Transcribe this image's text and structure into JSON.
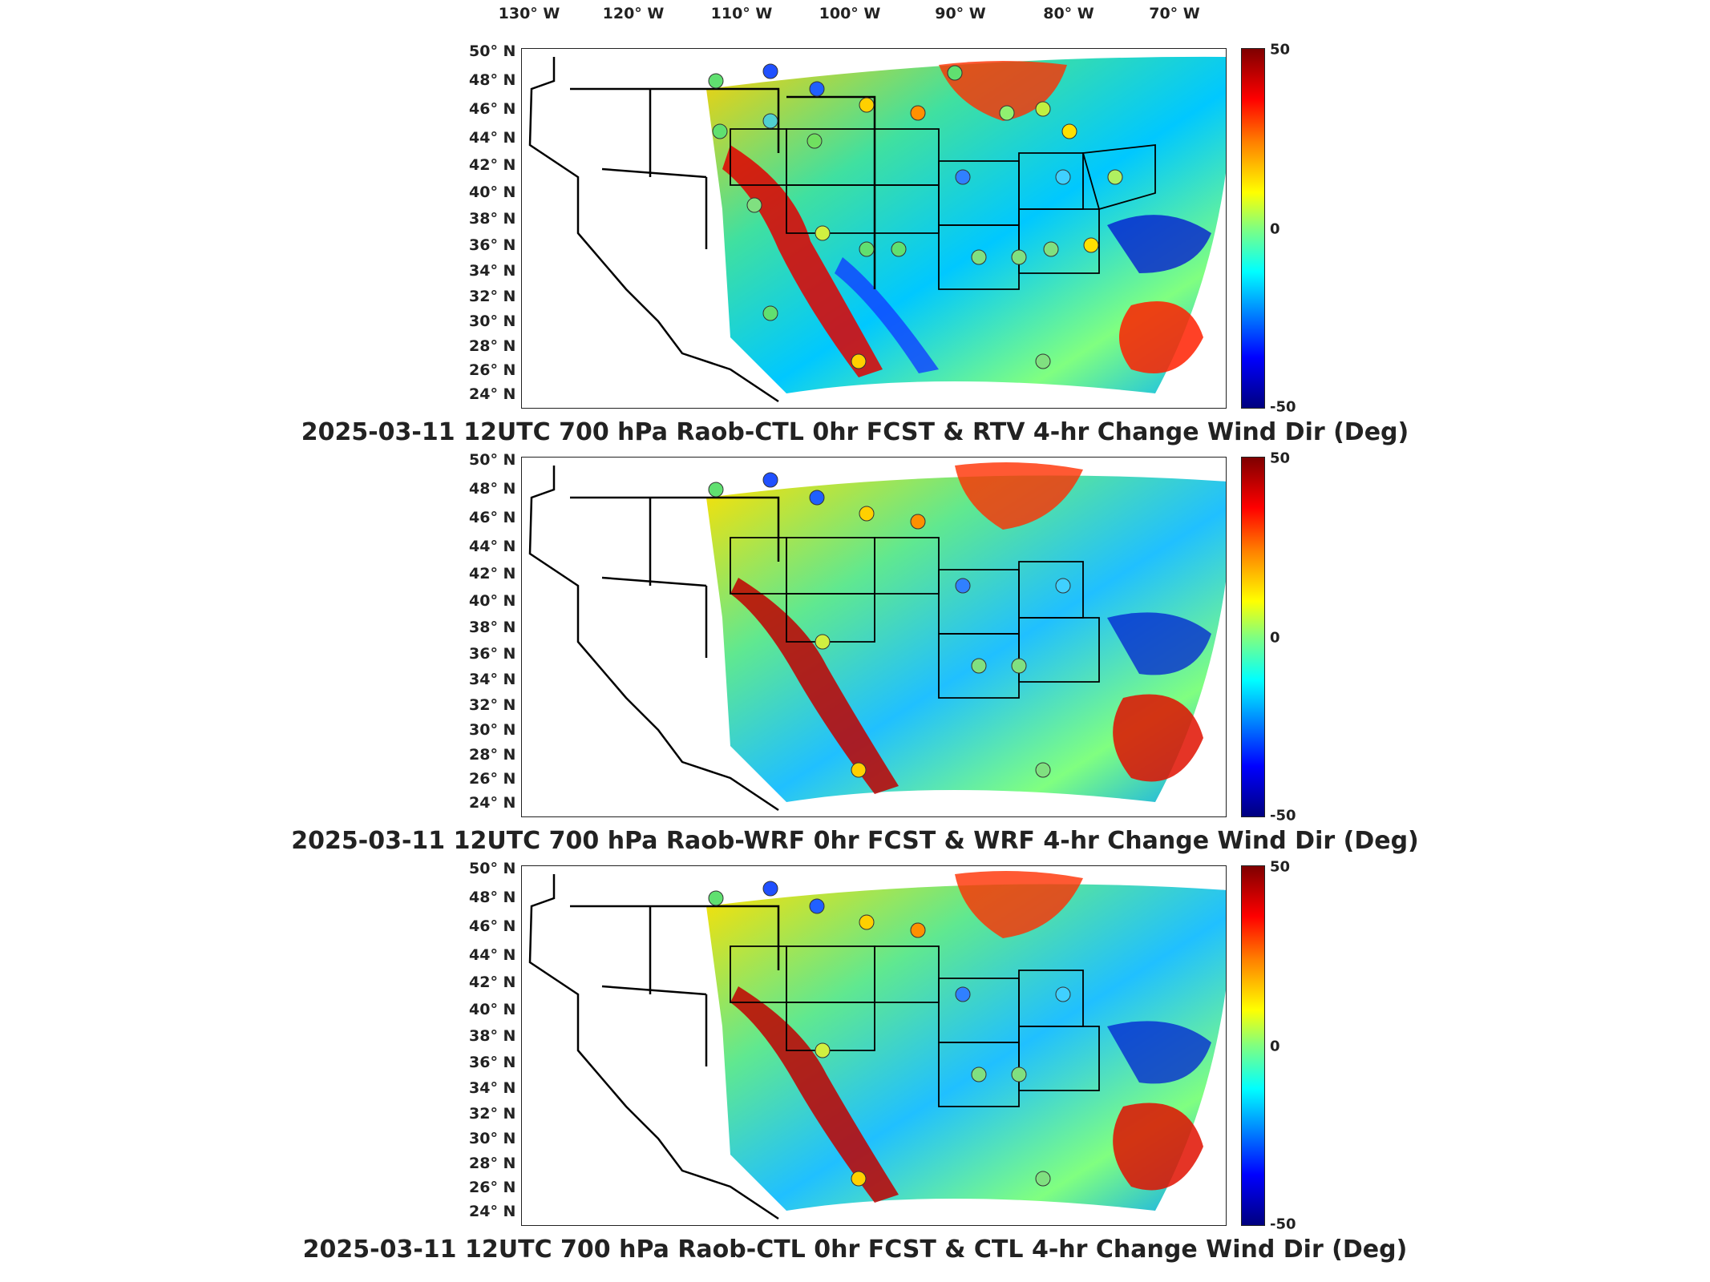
{
  "longitude_labels": [
    "130° W",
    "120° W",
    "110° W",
    "100° W",
    "90° W",
    "80° W",
    "70° W"
  ],
  "latitude_labels": [
    "50° N",
    "48° N",
    "46° N",
    "44° N",
    "42° N",
    "40° N",
    "38° N",
    "36° N",
    "34° N",
    "32° N",
    "30° N",
    "28° N",
    "26° N",
    "24° N"
  ],
  "colorbar": {
    "max_label": "50",
    "mid_label": "0",
    "min_label": "-50",
    "colormap": "jet"
  },
  "panels": [
    {
      "title": "2025-03-11 12UTC 700 hPa Raob-CTL 0hr FCST & RTV 4-hr Change Wind Dir (Deg)"
    },
    {
      "title": "2025-03-11 12UTC 700 hPa Raob-WRF 0hr FCST & WRF 4-hr Change Wind Dir (Deg)"
    },
    {
      "title": "2025-03-11 12UTC 700 hPa Raob-CTL 0hr FCST & CTL 4-hr Change Wind Dir (Deg)"
    }
  ],
  "colors": {
    "dark_red": "#7f0000",
    "red": "#ff0000",
    "orange": "#ff8000",
    "yellow": "#ffff00",
    "green": "#80ff80",
    "cyan": "#00ffff",
    "blue": "#0080ff",
    "dark_blue": "#00007f"
  }
}
